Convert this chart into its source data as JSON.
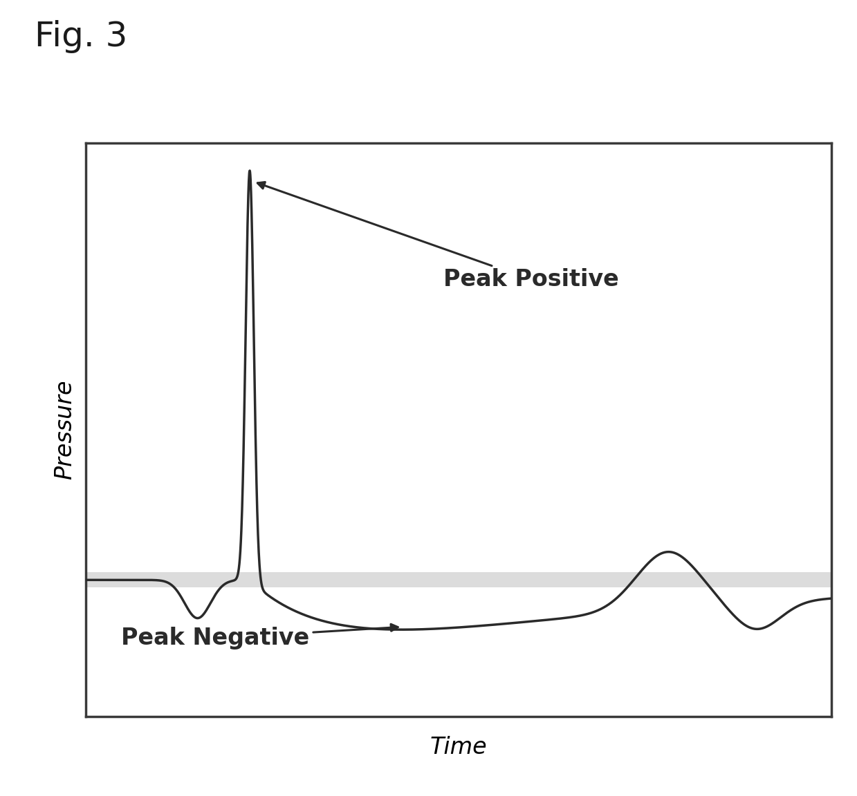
{
  "fig_label": "Fig. 3",
  "xlabel": "Time",
  "ylabel": "Pressure",
  "background_color": "#ffffff",
  "plot_bg_color": "#ffffff",
  "line_color": "#2a2a2a",
  "line_width": 2.5,
  "zero_band_color": "#bbbbbb",
  "zero_band_alpha": 0.5,
  "annotation_peak_positive": "Peak Positive",
  "annotation_peak_negative": "Peak Negative",
  "fig_label_fontsize": 36,
  "axis_label_fontsize": 24,
  "annotation_fontsize": 24,
  "xlim": [
    0,
    10
  ],
  "ylim": [
    -1.0,
    3.2
  ]
}
